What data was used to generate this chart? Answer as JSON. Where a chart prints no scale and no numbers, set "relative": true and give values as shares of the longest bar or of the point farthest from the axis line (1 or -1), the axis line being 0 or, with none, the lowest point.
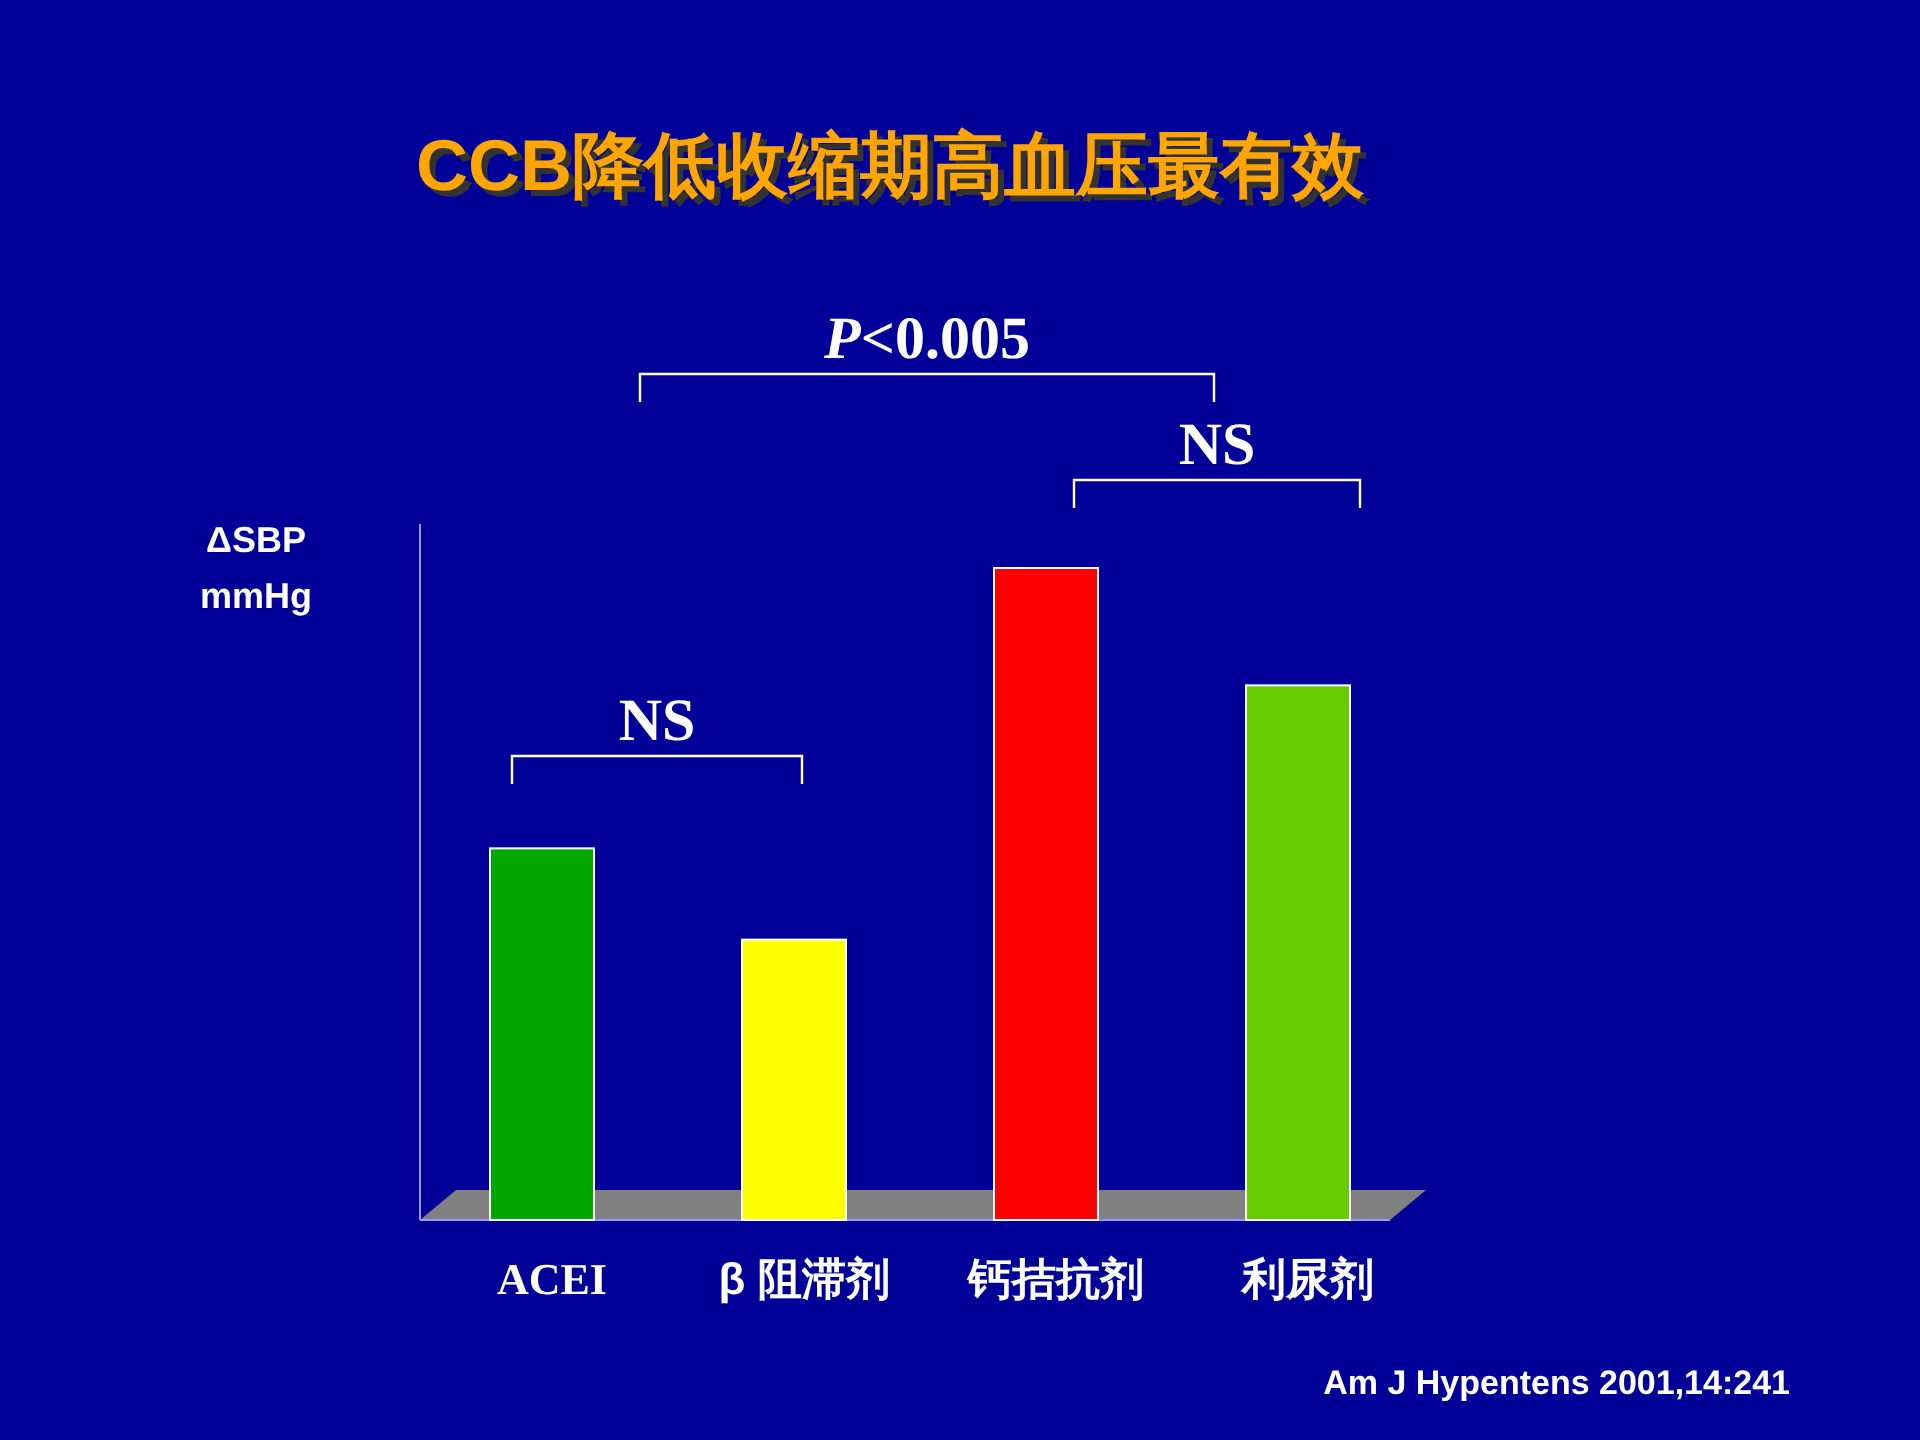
{
  "chart_data": {
    "type": "bar",
    "title": "CCB降低收缩期高血压最有效",
    "ylabel": "ΔSBP mmHg",
    "relative": true,
    "categories": [
      "ACEI",
      "β 阻滞剂",
      "钙拮抗剂",
      "利尿剂"
    ],
    "values": [
      0.57,
      0.43,
      1,
      0.82
    ],
    "colors": [
      "#00a800",
      "#ffff00",
      "#ff0000",
      "#66cc00"
    ],
    "annotations": [
      "*P*<0.005",
      "NS",
      "NS",
      "Am J Hypentens 2001,14:241"
    ]
  }
}
